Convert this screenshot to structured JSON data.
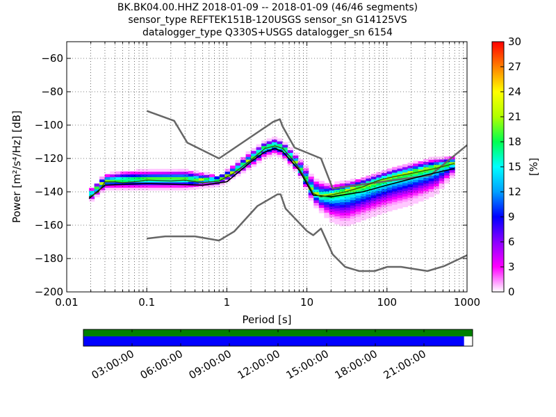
{
  "title_lines": [
    "BK.BK04.00.HHZ   2018-01-09 -- 2018-01-09  (46/46 segments)",
    "sensor_type REFTEK151B-120USGS sensor_sn G14125VS",
    "datalogger_type Q330S+USGS datalogger_sn 6154"
  ],
  "chart_data": {
    "type": "heatmap",
    "xlabel": "Period [s]",
    "ylabel": "Power [m²/s⁴/Hz] [dB]",
    "xscale": "log",
    "xlim": [
      0.01,
      1000
    ],
    "ylim": [
      -200,
      -50
    ],
    "xtick_values": [
      0.01,
      0.1,
      1,
      10,
      100,
      1000
    ],
    "xtick_labels": [
      "0.01",
      "0.1",
      "1",
      "10",
      "100",
      "1000"
    ],
    "ytick_values": [
      -60,
      -80,
      -100,
      -120,
      -140,
      -160,
      -180,
      -200
    ],
    "ytick_labels": [
      "−60",
      "−80",
      "−100",
      "−120",
      "−140",
      "−160",
      "−180",
      "−200"
    ],
    "colorbar": {
      "label": "[%]",
      "range": [
        0,
        30
      ],
      "tick_values": [
        0,
        3,
        6,
        9,
        12,
        15,
        18,
        21,
        24,
        27,
        30
      ],
      "tick_labels": [
        "0",
        "3",
        "6",
        "9",
        "12",
        "15",
        "18",
        "21",
        "24",
        "27",
        "30"
      ],
      "colors": [
        "#ffffff",
        "#ff00ff",
        "#8a00ff",
        "#0000ff",
        "#00a0ff",
        "#00ffff",
        "#00ff50",
        "#b0ff00",
        "#ffff00",
        "#ff8000",
        "#ff0000"
      ]
    },
    "high_noise_model": [
      [
        0.1,
        -91.5
      ],
      [
        0.22,
        -97.4
      ],
      [
        0.32,
        -110.5
      ],
      [
        0.8,
        -120
      ],
      [
        3.8,
        -98
      ],
      [
        4.6,
        -96.5
      ],
      [
        5.0,
        -101
      ],
      [
        7.0,
        -113.5
      ],
      [
        15,
        -120
      ],
      [
        21,
        -138
      ],
      [
        350,
        -130
      ],
      [
        1000,
        -112
      ]
    ],
    "low_noise_model": [
      [
        0.1,
        -168
      ],
      [
        0.17,
        -166.7
      ],
      [
        0.4,
        -166.7
      ],
      [
        0.8,
        -169.2
      ],
      [
        1.24,
        -163.7
      ],
      [
        2.4,
        -148.6
      ],
      [
        4.3,
        -141.5
      ],
      [
        4.7,
        -141.5
      ],
      [
        5.4,
        -150
      ],
      [
        10,
        -163.5
      ],
      [
        12,
        -166
      ],
      [
        15,
        -162
      ],
      [
        21,
        -177.5
      ],
      [
        30,
        -185
      ],
      [
        45,
        -187.5
      ],
      [
        70,
        -187.5
      ],
      [
        101,
        -185
      ],
      [
        150,
        -185
      ],
      [
        320,
        -187.5
      ],
      [
        520,
        -184.5
      ],
      [
        1000,
        -178
      ]
    ],
    "psd_modes": [
      [
        0.019,
        -143
      ],
      [
        0.022,
        -141.5
      ],
      [
        0.025,
        -140
      ],
      [
        0.03,
        -134
      ],
      [
        0.04,
        -134
      ],
      [
        0.05,
        -134.5
      ],
      [
        0.07,
        -134
      ],
      [
        0.1,
        -133
      ],
      [
        0.2,
        -133.5
      ],
      [
        0.3,
        -133
      ],
      [
        0.5,
        -134.5
      ],
      [
        0.8,
        -133.5
      ],
      [
        1.2,
        -129
      ],
      [
        2,
        -121
      ],
      [
        3,
        -114
      ],
      [
        4,
        -112.5
      ],
      [
        5,
        -114
      ],
      [
        7,
        -122
      ],
      [
        9,
        -130
      ],
      [
        12,
        -141
      ],
      [
        15,
        -143
      ],
      [
        20,
        -142
      ],
      [
        30,
        -140
      ],
      [
        50,
        -137
      ],
      [
        80,
        -133
      ],
      [
        120,
        -131
      ],
      [
        200,
        -129
      ],
      [
        400,
        -126
      ],
      [
        700,
        -123
      ]
    ],
    "psd_mean": [
      [
        0.019,
        -144
      ],
      [
        0.03,
        -136
      ],
      [
        0.1,
        -135
      ],
      [
        0.5,
        -136
      ],
      [
        1,
        -134
      ],
      [
        2,
        -122
      ],
      [
        3,
        -116
      ],
      [
        4,
        -114
      ],
      [
        5,
        -116
      ],
      [
        8,
        -127
      ],
      [
        12,
        -142
      ],
      [
        20,
        -143
      ],
      [
        50,
        -140
      ],
      [
        100,
        -136
      ],
      [
        300,
        -130
      ],
      [
        700,
        -126
      ]
    ],
    "pdf_band": {
      "center": [
        [
          0.019,
          -143
        ],
        [
          0.03,
          -134
        ],
        [
          0.1,
          -133
        ],
        [
          0.3,
          -133
        ],
        [
          0.8,
          -133.5
        ],
        [
          1.2,
          -129
        ],
        [
          2,
          -121
        ],
        [
          3,
          -114
        ],
        [
          4,
          -112.5
        ],
        [
          5,
          -114
        ],
        [
          7,
          -122
        ],
        [
          9,
          -130
        ],
        [
          12,
          -141
        ],
        [
          15,
          -143
        ],
        [
          20,
          -142
        ],
        [
          50,
          -137
        ],
        [
          120,
          -131
        ],
        [
          300,
          -127
        ],
        [
          700,
          -123
        ]
      ],
      "upper_envelope": [
        [
          0.019,
          -140
        ],
        [
          0.03,
          -130
        ],
        [
          0.05,
          -128
        ],
        [
          0.3,
          -127
        ],
        [
          0.8,
          -131
        ],
        [
          2,
          -116
        ],
        [
          3,
          -110
        ],
        [
          4,
          -108
        ],
        [
          5,
          -110
        ],
        [
          8,
          -120
        ],
        [
          12,
          -132
        ],
        [
          20,
          -136
        ],
        [
          50,
          -132
        ],
        [
          120,
          -126
        ],
        [
          300,
          -121
        ],
        [
          700,
          -119
        ]
      ],
      "lower_envelope": [
        [
          0.019,
          -147
        ],
        [
          0.03,
          -139
        ],
        [
          0.1,
          -139
        ],
        [
          0.3,
          -139
        ],
        [
          0.8,
          -137
        ],
        [
          2,
          -126
        ],
        [
          3,
          -120
        ],
        [
          4,
          -118
        ],
        [
          5,
          -120
        ],
        [
          8,
          -130
        ],
        [
          12,
          -148
        ],
        [
          20,
          -158
        ],
        [
          30,
          -161
        ],
        [
          50,
          -157
        ],
        [
          100,
          -152
        ],
        [
          200,
          -148
        ],
        [
          400,
          -142
        ],
        [
          700,
          -130
        ]
      ]
    }
  },
  "timeline": {
    "tick_labels": [
      "03:00:00",
      "06:00:00",
      "09:00:00",
      "12:00:00",
      "15:00:00",
      "18:00:00",
      "21:00:00"
    ],
    "tick_hours": [
      3,
      6,
      9,
      12,
      15,
      18,
      21
    ],
    "range_hours": [
      0,
      24
    ],
    "data_coverage_fraction": 1.0,
    "psd_coverage_fraction": 0.978,
    "data_color": "#008000",
    "psd_color": "#0000ff"
  }
}
